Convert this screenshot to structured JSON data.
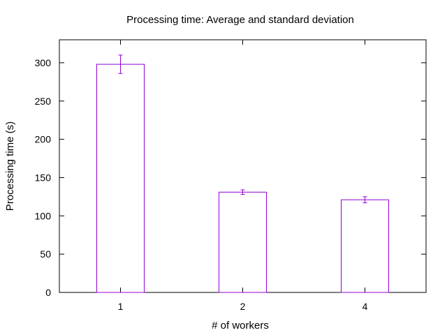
{
  "chart_data": {
    "type": "bar",
    "title": "Processing time: Average and standard deviation",
    "xlabel": "# of workers",
    "ylabel": "Processing time (s)",
    "categories": [
      "1",
      "2",
      "4"
    ],
    "values": [
      298,
      131,
      121
    ],
    "errors": [
      12,
      3,
      4
    ],
    "ylim": [
      0,
      330
    ],
    "yticks": [
      0,
      50,
      100,
      150,
      200,
      250,
      300
    ],
    "grid": false,
    "bar_color": "#9400d3",
    "error_color": "#9400d3",
    "axis_color": "#000000"
  }
}
